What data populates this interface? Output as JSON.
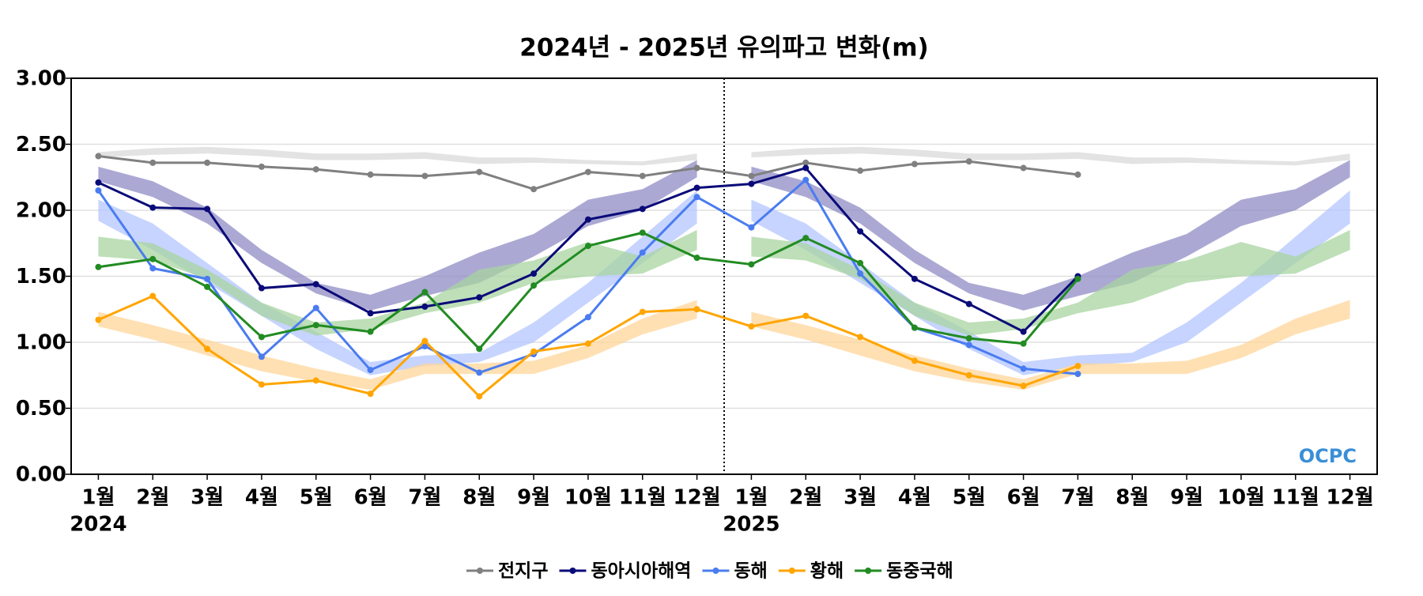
{
  "chart_data": {
    "type": "line",
    "title": "2024년 - 2025년 유의파고 변화(m)",
    "categories": [
      "1월",
      "2월",
      "3월",
      "4월",
      "5월",
      "6월",
      "7월",
      "8월",
      "9월",
      "10월",
      "11월",
      "12월",
      "1월",
      "2월",
      "3월",
      "4월",
      "5월",
      "6월",
      "7월",
      "8월",
      "9월",
      "10월",
      "11월",
      "12월"
    ],
    "years": [
      "2024",
      "2025"
    ],
    "ylim": [
      0,
      3
    ],
    "yticks": [
      {
        "value": 0,
        "label": "0.00"
      },
      {
        "value": 0.5,
        "label": "0.50"
      },
      {
        "value": 1,
        "label": "1.00"
      },
      {
        "value": 1.5,
        "label": "1.50"
      },
      {
        "value": 2,
        "label": "2.00"
      },
      {
        "value": 2.5,
        "label": "2.50"
      },
      {
        "value": 3,
        "label": "3.00"
      }
    ],
    "grid": true,
    "legend": "bottom",
    "logo": "OCPC",
    "series": [
      {
        "name": "전지구",
        "color": "#808080",
        "band_color": "#d9d9d9",
        "values": [
          2.41,
          2.36,
          2.36,
          2.33,
          2.31,
          2.27,
          2.26,
          2.29,
          2.16,
          2.29,
          2.26,
          2.32,
          2.26,
          2.36,
          2.3,
          2.35,
          2.37,
          2.32,
          2.27,
          null,
          null,
          null,
          null,
          null
        ],
        "band_low": [
          2.4,
          2.42,
          2.43,
          2.41,
          2.38,
          2.38,
          2.39,
          2.35,
          2.36,
          2.35,
          2.34,
          2.38
        ],
        "band_high": [
          2.44,
          2.47,
          2.48,
          2.46,
          2.43,
          2.43,
          2.44,
          2.4,
          2.4,
          2.38,
          2.37,
          2.43
        ]
      },
      {
        "name": "동아시아해역",
        "color": "#0a0a78",
        "band_color": "#8f8cc4",
        "values": [
          2.21,
          2.02,
          2.01,
          1.41,
          1.44,
          1.22,
          1.27,
          1.34,
          1.52,
          1.93,
          2.01,
          2.17,
          2.2,
          2.32,
          1.84,
          1.48,
          1.29,
          1.08,
          1.5,
          null,
          null,
          null,
          null,
          null
        ],
        "band_low": [
          2.22,
          2.1,
          1.9,
          1.6,
          1.37,
          1.24,
          1.35,
          1.45,
          1.65,
          1.88,
          2.0,
          2.25
        ],
        "band_high": [
          2.33,
          2.22,
          2.02,
          1.7,
          1.45,
          1.36,
          1.5,
          1.68,
          1.82,
          2.08,
          2.16,
          2.38
        ]
      },
      {
        "name": "동해",
        "color": "#4a7cf0",
        "band_color": "#b3c6ff",
        "values": [
          2.15,
          1.56,
          1.48,
          0.89,
          1.26,
          0.79,
          0.97,
          0.77,
          0.91,
          1.19,
          1.68,
          2.1,
          1.87,
          2.23,
          1.52,
          1.11,
          0.98,
          0.8,
          0.76,
          null,
          null,
          null,
          null,
          null
        ],
        "band_low": [
          1.92,
          1.7,
          1.45,
          1.2,
          0.95,
          0.75,
          0.82,
          0.85,
          1.0,
          1.3,
          1.6,
          1.9
        ],
        "band_high": [
          2.08,
          1.9,
          1.6,
          1.3,
          1.08,
          0.85,
          0.9,
          0.92,
          1.15,
          1.45,
          1.8,
          2.15
        ]
      },
      {
        "name": "황해",
        "color": "#ffa500",
        "band_color": "#ffd699",
        "values": [
          1.17,
          1.35,
          0.95,
          0.68,
          0.71,
          0.61,
          1.01,
          0.59,
          0.93,
          0.99,
          1.23,
          1.25,
          1.12,
          1.2,
          1.04,
          0.86,
          0.75,
          0.67,
          0.82,
          null,
          null,
          null,
          null,
          null
        ],
        "band_low": [
          1.12,
          1.02,
          0.9,
          0.78,
          0.7,
          0.64,
          0.76,
          0.76,
          0.76,
          0.88,
          1.06,
          1.18
        ],
        "band_high": [
          1.23,
          1.13,
          1.02,
          0.9,
          0.8,
          0.72,
          0.84,
          0.84,
          0.86,
          0.98,
          1.18,
          1.32
        ]
      },
      {
        "name": "동중국해",
        "color": "#228b22",
        "band_color": "#a8d4a0",
        "values": [
          1.57,
          1.63,
          1.42,
          1.04,
          1.13,
          1.08,
          1.38,
          0.95,
          1.43,
          1.73,
          1.83,
          1.64,
          1.59,
          1.79,
          1.6,
          1.11,
          1.03,
          0.99,
          1.48,
          null,
          null,
          null,
          null,
          null
        ],
        "band_low": [
          1.65,
          1.62,
          1.48,
          1.2,
          1.05,
          1.1,
          1.22,
          1.3,
          1.45,
          1.5,
          1.52,
          1.7
        ],
        "band_high": [
          1.8,
          1.75,
          1.55,
          1.3,
          1.15,
          1.18,
          1.3,
          1.55,
          1.62,
          1.76,
          1.65,
          1.85
        ]
      }
    ]
  }
}
